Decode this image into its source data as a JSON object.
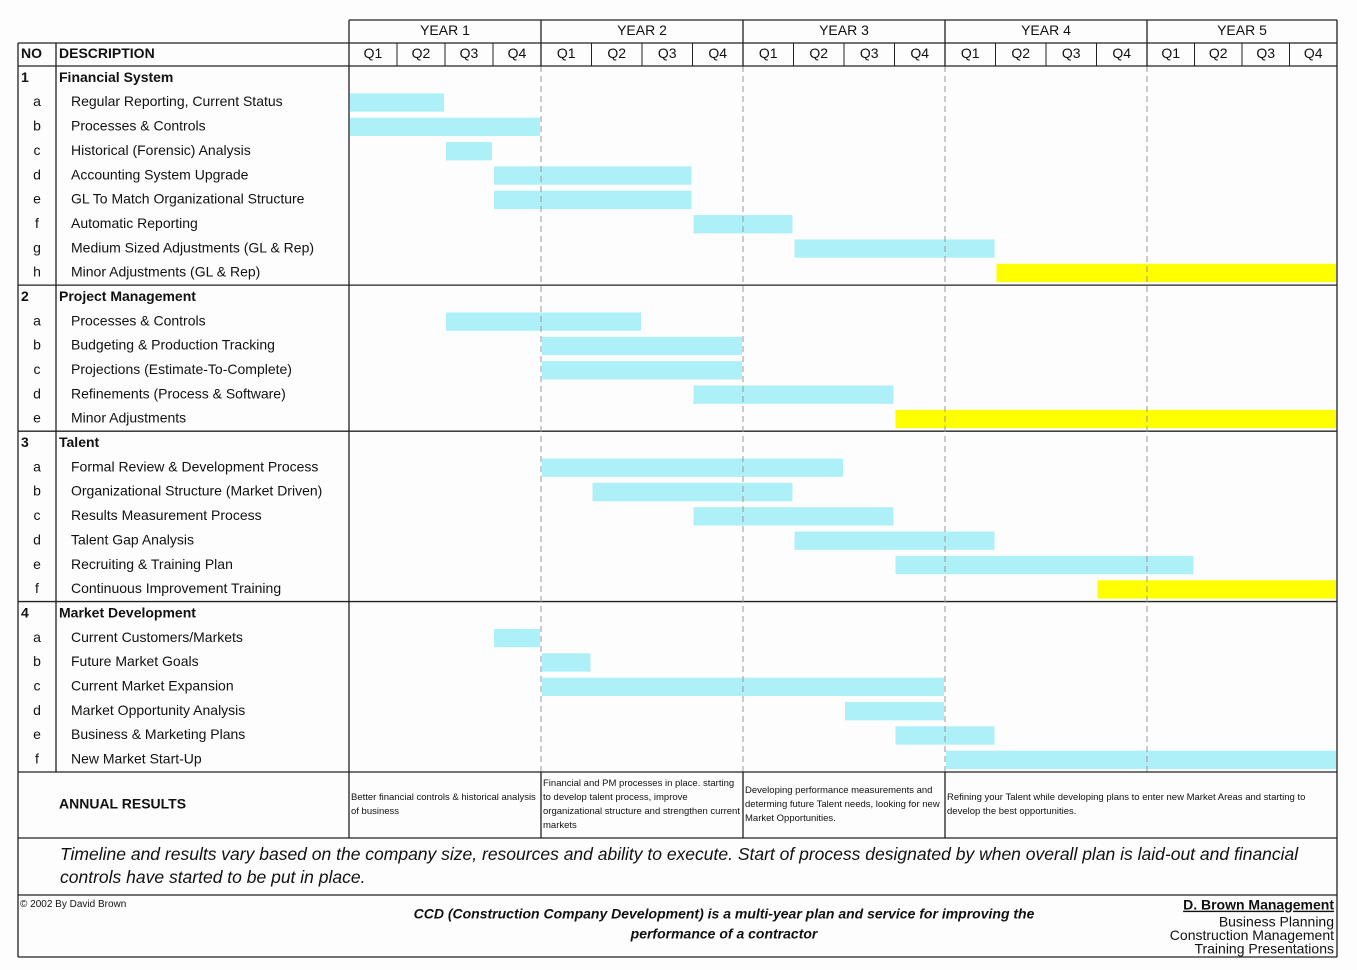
{
  "header": {
    "no": "NO",
    "description": "DESCRIPTION",
    "years": [
      {
        "label": "YEAR 1",
        "quarters": [
          "Q1",
          "Q2",
          "Q3",
          "Q4"
        ]
      },
      {
        "label": "YEAR 2",
        "quarters": [
          "Q1",
          "Q2",
          "Q3",
          "Q4"
        ]
      },
      {
        "label": "YEAR 3",
        "quarters": [
          "Q1",
          "Q2",
          "Q3",
          "Q4"
        ]
      },
      {
        "label": "YEAR 4",
        "quarters": [
          "Q1",
          "Q2",
          "Q3",
          "Q4"
        ]
      },
      {
        "label": "YEAR 5",
        "quarters": [
          "Q1",
          "Q2",
          "Q3",
          "Q4"
        ]
      }
    ]
  },
  "sections": [
    {
      "no": "1",
      "title": "Financial System",
      "tasks": [
        {
          "id": "a",
          "label": "Regular Reporting, Current Status",
          "start": 0,
          "end": 2,
          "color": "#aef0f8"
        },
        {
          "id": "b",
          "label": "Processes & Controls",
          "start": 0,
          "end": 4,
          "color": "#aef0f8"
        },
        {
          "id": "c",
          "label": "Historical (Forensic) Analysis",
          "start": 2,
          "end": 3,
          "color": "#aef0f8"
        },
        {
          "id": "d",
          "label": "Accounting System Upgrade",
          "start": 3,
          "end": 7,
          "color": "#aef0f8"
        },
        {
          "id": "e",
          "label": "GL To Match Organizational Structure",
          "start": 3,
          "end": 7,
          "color": "#aef0f8"
        },
        {
          "id": "f",
          "label": "Automatic Reporting",
          "start": 7,
          "end": 9,
          "color": "#aef0f8"
        },
        {
          "id": "g",
          "label": "Medium Sized Adjustments (GL & Rep)",
          "start": 9,
          "end": 13,
          "color": "#aef0f8"
        },
        {
          "id": "h",
          "label": "Minor Adjustments (GL & Rep)",
          "start": 13,
          "end": 20,
          "color": "#ffff00"
        }
      ]
    },
    {
      "no": "2",
      "title": "Project Management",
      "tasks": [
        {
          "id": "a",
          "label": "Processes & Controls",
          "start": 2,
          "end": 6,
          "color": "#aef0f8"
        },
        {
          "id": "b",
          "label": "Budgeting & Production Tracking",
          "start": 4,
          "end": 8,
          "color": "#aef0f8"
        },
        {
          "id": "c",
          "label": "Projections (Estimate-To-Complete)",
          "start": 4,
          "end": 8,
          "color": "#aef0f8"
        },
        {
          "id": "d",
          "label": "Refinements (Process & Software)",
          "start": 7,
          "end": 11,
          "color": "#aef0f8"
        },
        {
          "id": "e",
          "label": "Minor Adjustments",
          "start": 11,
          "end": 20,
          "color": "#ffff00"
        }
      ]
    },
    {
      "no": "3",
      "title": "Talent",
      "tasks": [
        {
          "id": "a",
          "label": "Formal Review & Development Process",
          "start": 4,
          "end": 10,
          "color": "#aef0f8"
        },
        {
          "id": "b",
          "label": "Organizational Structure (Market Driven)",
          "start": 5,
          "end": 9,
          "color": "#aef0f8"
        },
        {
          "id": "c",
          "label": "Results Measurement Process",
          "start": 7,
          "end": 11,
          "color": "#aef0f8"
        },
        {
          "id": "d",
          "label": "Talent Gap Analysis",
          "start": 9,
          "end": 13,
          "color": "#aef0f8"
        },
        {
          "id": "e",
          "label": "Recruiting & Training Plan",
          "start": 11,
          "end": 17,
          "color": "#aef0f8"
        },
        {
          "id": "f",
          "label": "Continuous Improvement Training",
          "start": 15,
          "end": 20,
          "color": "#ffff00"
        }
      ]
    },
    {
      "no": "4",
      "title": "Market Development",
      "tasks": [
        {
          "id": "a",
          "label": "Current Customers/Markets",
          "start": 3,
          "end": 4,
          "color": "#aef0f8"
        },
        {
          "id": "b",
          "label": "Future Market Goals",
          "start": 4,
          "end": 5,
          "color": "#aef0f8"
        },
        {
          "id": "c",
          "label": "Current Market Expansion",
          "start": 4,
          "end": 12,
          "color": "#aef0f8"
        },
        {
          "id": "d",
          "label": "Market Opportunity Analysis",
          "start": 10,
          "end": 12,
          "color": "#aef0f8"
        },
        {
          "id": "e",
          "label": "Business & Marketing Plans",
          "start": 11,
          "end": 13,
          "color": "#aef0f8"
        },
        {
          "id": "f",
          "label": "New Market Start-Up",
          "start": 12,
          "end": 20,
          "color": "#aef0f8"
        }
      ]
    }
  ],
  "annual_results": {
    "label": "ANNUAL RESULTS",
    "notes": [
      "Better financial controls & historical analysis of business",
      "Financial and PM processes in place. starting to develop talent process, improve organizational structure and strengthen current markets",
      "Developing performance measurements and determing future Talent needs, looking for new Market Opportunities.",
      "Refining your Talent while developing plans to enter new Market Areas and starting to develop the best opportunities."
    ]
  },
  "note": "Timeline and results vary based on the company size, resources and ability to execute.  Start of process designated by when overall plan is laid-out and financial controls have started to be put in place.",
  "footer": {
    "copyright": "© 2002 By David Brown",
    "tagline": [
      "CCD (Construction Company Development) is a multi-year plan and service for improving the",
      "performance of a contractor"
    ],
    "company": "D. Brown Management",
    "services": [
      "Business Planning",
      "Construction Management",
      "Training Presentations"
    ]
  }
}
